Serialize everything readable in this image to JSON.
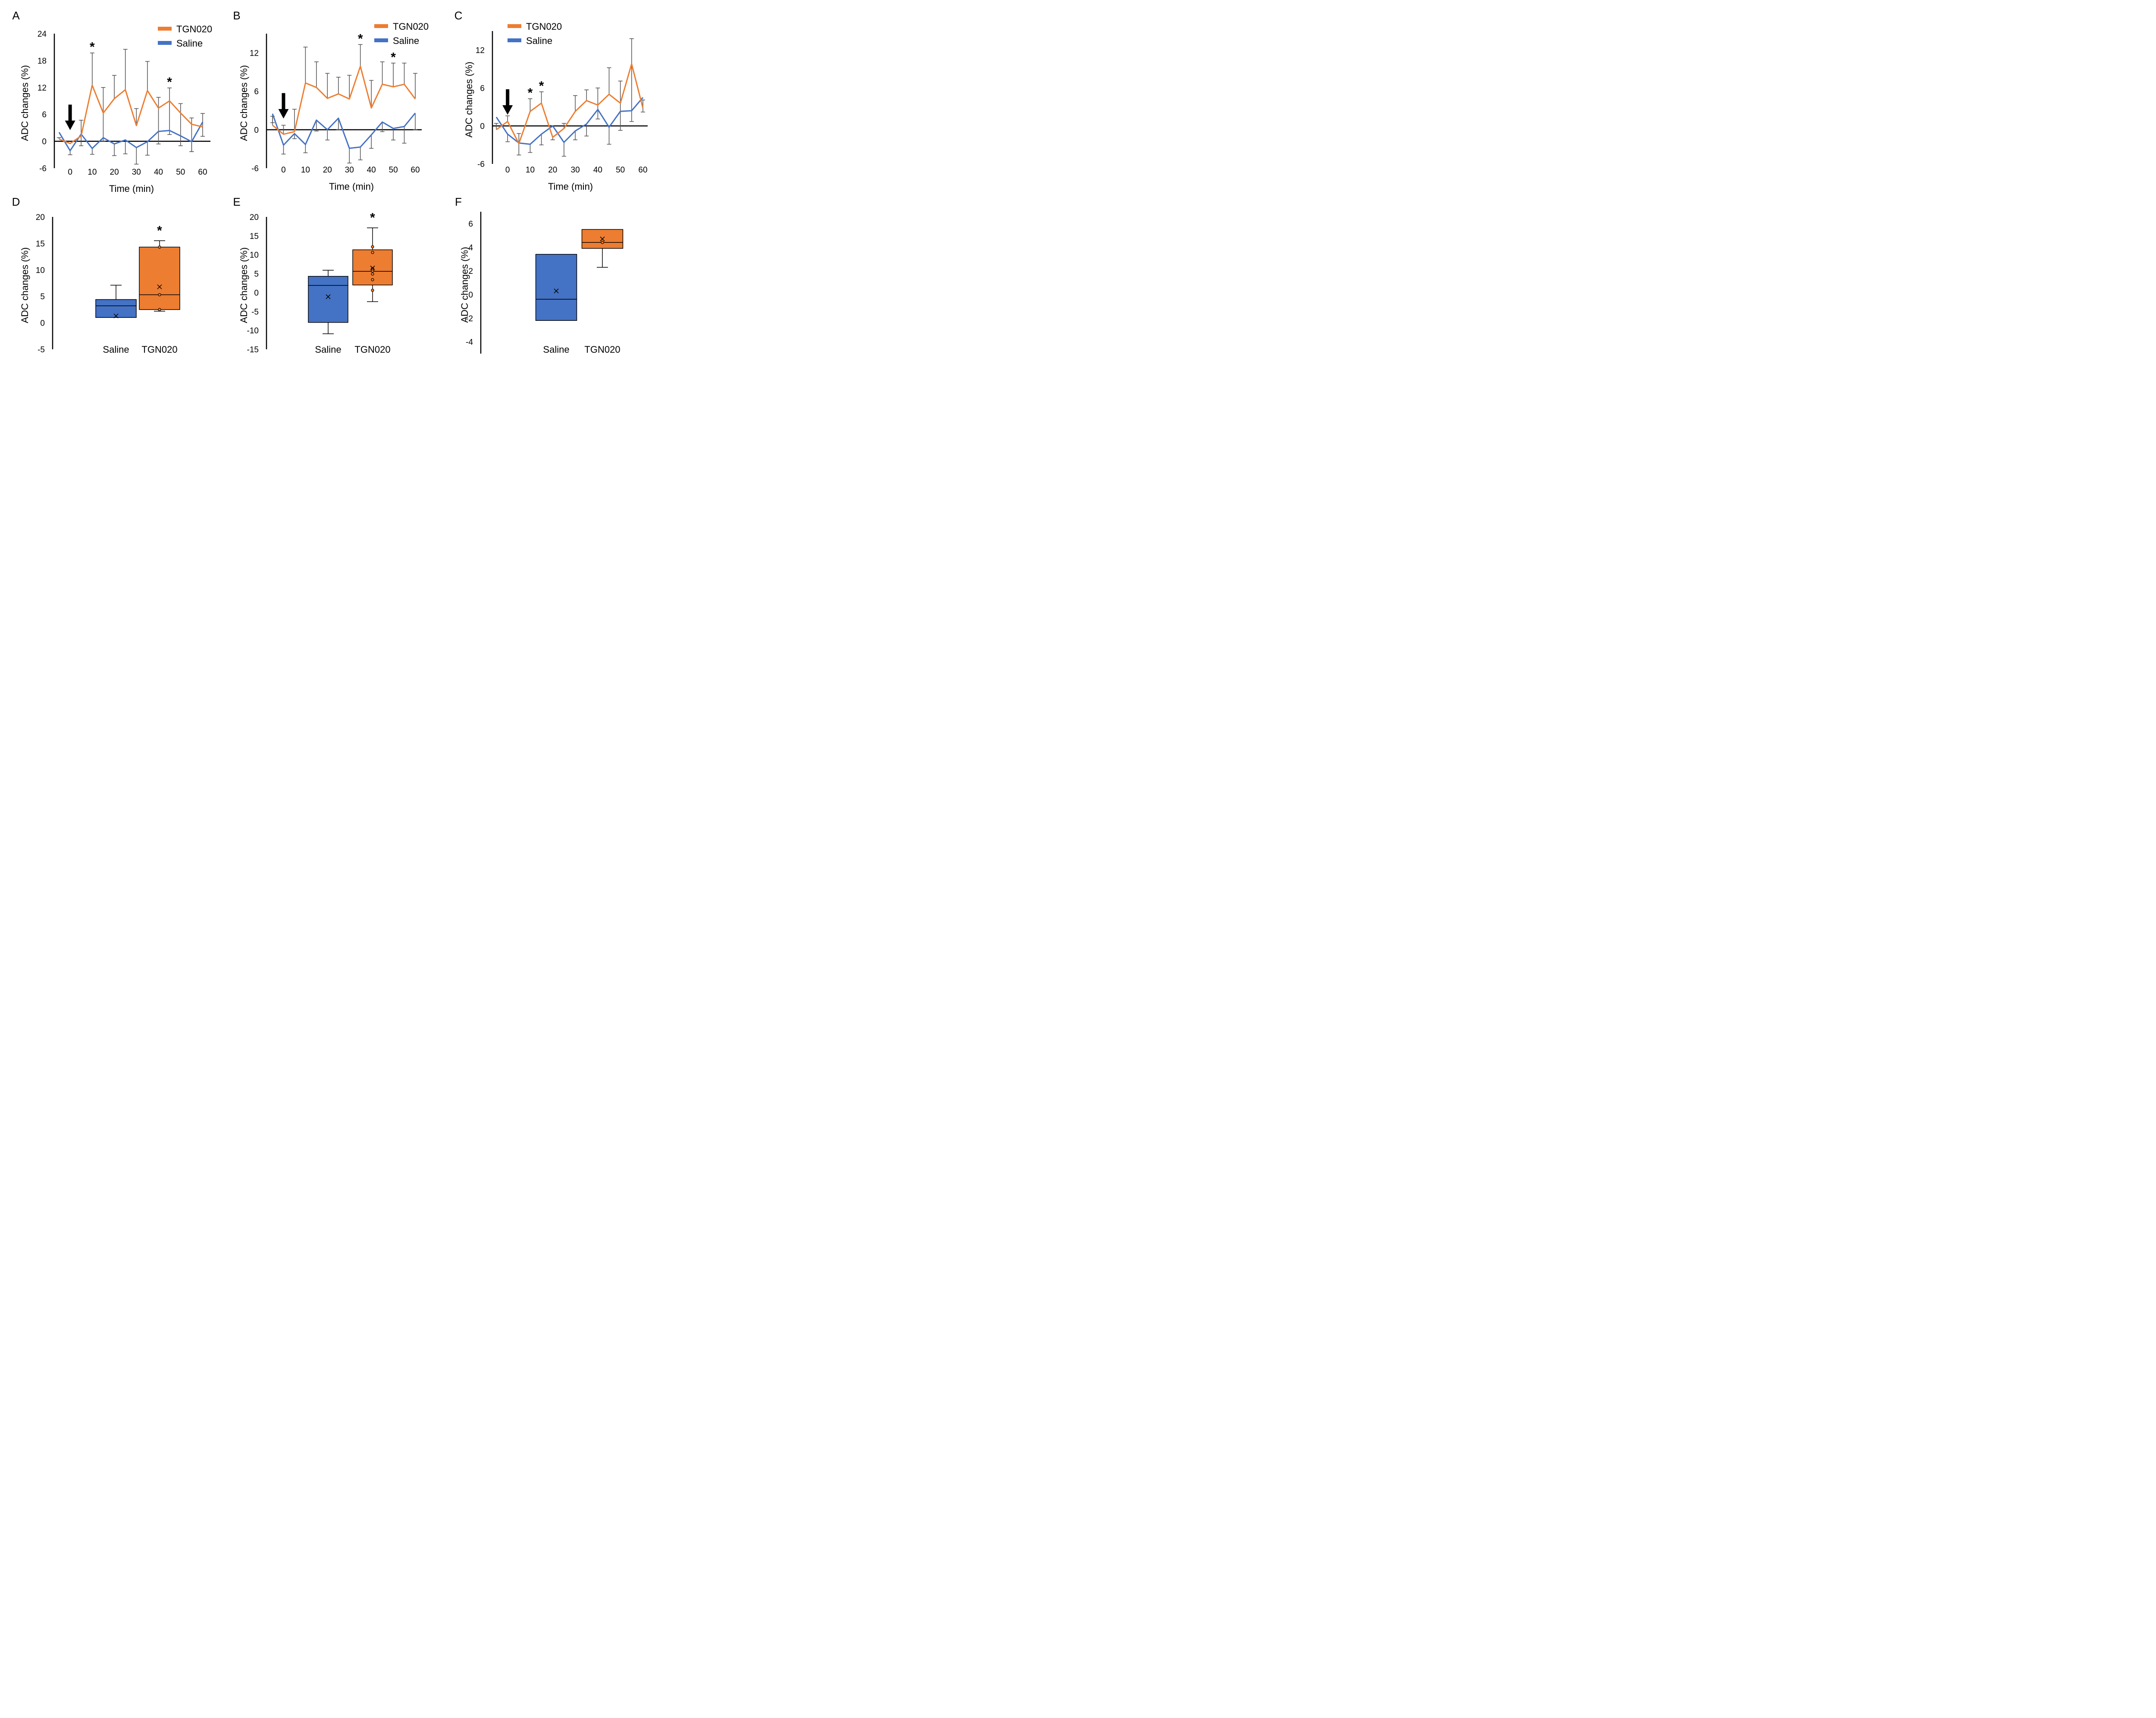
{
  "colors": {
    "tgn020": "#ED7D31",
    "saline": "#4472C4",
    "error_bar": "#595959",
    "axis": "#000000"
  },
  "chart_data": [
    {
      "panel": "A",
      "type": "line",
      "xlabel": "Time (min)",
      "ylabel": "ADC changes (%)",
      "ylim": [
        -6,
        24
      ],
      "yticks": [
        "-6",
        "0",
        "6",
        "12",
        "18",
        "24"
      ],
      "ytick_values": [
        -6,
        0,
        6,
        12,
        18,
        24
      ],
      "xticks": [
        "0",
        "10",
        "20",
        "30",
        "40",
        "50",
        "60"
      ],
      "xtick_values": [
        0,
        10,
        20,
        30,
        40,
        50,
        60
      ],
      "x": [
        -5,
        0,
        5,
        10,
        15,
        20,
        25,
        30,
        35,
        40,
        45,
        50,
        55,
        60
      ],
      "legend": "top-right",
      "arrow_at": 0,
      "series": [
        {
          "name": "TGN020",
          "color_key": "tgn020",
          "values": [
            0.5,
            -0.5,
            1.2,
            12.5,
            6.3,
            9.5,
            11.5,
            3.5,
            11.3,
            7.4,
            9.0,
            6.3,
            3.8,
            3.2
          ],
          "error_upper": [
            0.8,
            null,
            4.7,
            19.7,
            12.0,
            14.7,
            20.5,
            7.3,
            17.8,
            9.8,
            11.9,
            8.4,
            5.2,
            6.2
          ],
          "error_lower": [
            null,
            null,
            -1.0,
            null,
            0.0,
            null,
            null,
            null,
            null,
            -0.6,
            1.5,
            -1.0,
            -2.3,
            1.1
          ]
        },
        {
          "name": "Saline",
          "color_key": "saline",
          "values": [
            2.0,
            -2.1,
            1.6,
            -1.6,
            0.8,
            -0.6,
            0.3,
            -1.4,
            -0.1,
            2.2,
            2.4,
            1.2,
            -0.1,
            4.3
          ],
          "error_upper": [
            null,
            null,
            null,
            null,
            null,
            null,
            null,
            null,
            null,
            null,
            null,
            null,
            null,
            null
          ],
          "error_lower": [
            null,
            -3.0,
            null,
            -2.9,
            null,
            -3.2,
            -2.8,
            -5.1,
            -3.1,
            null,
            null,
            null,
            -2.3,
            null
          ]
        }
      ],
      "significance": [
        10,
        45
      ]
    },
    {
      "panel": "B",
      "type": "line",
      "xlabel": "Time (min)",
      "ylabel": "ADC changes (%)",
      "ylim": [
        -6,
        15
      ],
      "yticks": [
        "-6",
        "0",
        "6",
        "12"
      ],
      "ytick_values": [
        -6,
        0,
        6,
        12
      ],
      "xticks": [
        "0",
        "10",
        "20",
        "30",
        "40",
        "50",
        "60"
      ],
      "xtick_values": [
        0,
        10,
        20,
        30,
        40,
        50,
        60
      ],
      "x": [
        -5,
        0,
        5,
        10,
        15,
        20,
        25,
        30,
        35,
        40,
        45,
        50,
        55,
        60
      ],
      "legend": "top-right",
      "arrow_at": 0,
      "series": [
        {
          "name": "TGN020",
          "color_key": "tgn020",
          "values": [
            0.7,
            -0.7,
            -0.3,
            7.3,
            6.6,
            4.9,
            5.6,
            4.8,
            9.9,
            3.4,
            7.1,
            6.7,
            7.1,
            4.8
          ],
          "error_upper": [
            2.1,
            0.7,
            3.2,
            12.9,
            10.6,
            8.8,
            8.2,
            8.5,
            13.3,
            7.7,
            10.6,
            10.4,
            10.4,
            8.8
          ],
          "error_lower": [
            null,
            null,
            null,
            null,
            null,
            null,
            null,
            null,
            null,
            null,
            null,
            null,
            null,
            null
          ]
        },
        {
          "name": "Saline",
          "color_key": "saline",
          "values": [
            2.5,
            -2.4,
            -0.6,
            -2.3,
            1.5,
            0.0,
            1.8,
            -2.9,
            -2.7,
            -0.8,
            1.2,
            0.2,
            0.5,
            2.6
          ],
          "error_upper": [
            null,
            null,
            null,
            null,
            null,
            null,
            null,
            null,
            null,
            null,
            null,
            null,
            null,
            null
          ],
          "error_lower": [
            1.1,
            -3.8,
            -1.4,
            -3.6,
            -0.2,
            -1.6,
            0.0,
            -5.2,
            -4.7,
            -2.9,
            -0.3,
            -1.6,
            -2.1,
            0.0
          ]
        }
      ],
      "significance": [
        35,
        50
      ]
    },
    {
      "panel": "C",
      "type": "line",
      "xlabel": "Time (min)",
      "ylabel": "ADC changes (%)",
      "ylim": [
        -6,
        15
      ],
      "yticks": [
        "-6",
        "0",
        "6",
        "12"
      ],
      "ytick_values": [
        -6,
        0,
        6,
        12
      ],
      "xticks": [
        "0",
        "10",
        "20",
        "30",
        "40",
        "50",
        "60"
      ],
      "xtick_values": [
        0,
        10,
        20,
        30,
        40,
        50,
        60
      ],
      "x": [
        -5,
        0,
        5,
        10,
        15,
        20,
        25,
        30,
        35,
        40,
        45,
        50,
        55,
        60
      ],
      "legend": "top-left",
      "arrow_at": 0,
      "series": [
        {
          "name": "TGN020",
          "color_key": "tgn020",
          "values": [
            -0.6,
            0.7,
            -2.8,
            2.3,
            3.6,
            -1.8,
            -0.4,
            2.3,
            4.0,
            3.3,
            5.0,
            3.6,
            9.8,
            2.8
          ],
          "error_upper": [
            0.4,
            1.6,
            null,
            4.3,
            5.4,
            null,
            0.4,
            4.8,
            5.7,
            6.0,
            9.2,
            7.1,
            13.8,
            4.1
          ],
          "error_lower": [
            null,
            null,
            -4.6,
            null,
            null,
            -2.2,
            null,
            null,
            null,
            1.1,
            null,
            -0.7,
            0.7,
            2.2
          ]
        },
        {
          "name": "Saline",
          "color_key": "saline",
          "values": [
            1.4,
            -1.3,
            -2.7,
            -2.9,
            -1.3,
            0.0,
            -2.6,
            -0.8,
            0.3,
            2.6,
            -0.2,
            2.3,
            2.4,
            4.5
          ],
          "error_upper": [
            null,
            null,
            -1.2,
            null,
            null,
            null,
            null,
            null,
            null,
            null,
            null,
            null,
            null,
            null
          ],
          "error_lower": [
            null,
            -2.5,
            null,
            -4.2,
            -3.0,
            null,
            -4.8,
            -2.2,
            -1.6,
            null,
            -2.9,
            null,
            null,
            null
          ]
        }
      ],
      "significance": [
        10,
        15
      ]
    },
    {
      "panel": "D",
      "type": "box",
      "ylabel": "ADC changes (%)",
      "ylim": [
        -5,
        20
      ],
      "yticks": [
        "-5",
        "0",
        "5",
        "10",
        "15",
        "20"
      ],
      "ytick_values": [
        -5,
        0,
        5,
        10,
        15,
        20
      ],
      "categories": [
        "Saline",
        "TGN020"
      ],
      "boxes": [
        {
          "name": "Saline",
          "color_key": "saline",
          "min": 1.0,
          "q1": 1.0,
          "median": 3.2,
          "q3": 4.4,
          "max": 7.1,
          "mean": 1.3,
          "points": []
        },
        {
          "name": "TGN020",
          "color_key": "tgn020",
          "min": 2.2,
          "q1": 2.5,
          "median": 5.3,
          "q3": 14.3,
          "max": 15.5,
          "mean": 6.8,
          "points": [
            2.5,
            5.3,
            14.3
          ]
        }
      ],
      "significance": [
        "TGN020"
      ]
    },
    {
      "panel": "E",
      "type": "box",
      "ylabel": "ADC changes (%)",
      "ylim": [
        -15,
        20
      ],
      "yticks": [
        "-15",
        "-10",
        "-5",
        "0",
        "5",
        "10",
        "15",
        "20"
      ],
      "ytick_values": [
        -15,
        -10,
        -5,
        0,
        5,
        10,
        15,
        20
      ],
      "categories": [
        "Saline",
        "TGN020"
      ],
      "boxes": [
        {
          "name": "Saline",
          "color_key": "saline",
          "min": -10.9,
          "q1": -7.9,
          "median": 1.9,
          "q3": 4.3,
          "max": 5.9,
          "mean": -1.1,
          "points": []
        },
        {
          "name": "TGN020",
          "color_key": "tgn020",
          "min": -2.4,
          "q1": 2.0,
          "median": 5.6,
          "q3": 11.3,
          "max": 17.1,
          "mean": 6.5,
          "points": [
            0.6,
            3.4,
            4.9,
            5.7,
            6.3,
            10.6,
            12.1
          ]
        }
      ],
      "significance": [
        "TGN020"
      ]
    },
    {
      "panel": "F",
      "type": "box",
      "ylabel": "ADC changes (%)",
      "ylim": [
        -5,
        7
      ],
      "yticks": [
        "-4",
        "-2",
        "0",
        "2",
        "4",
        "6"
      ],
      "ytick_values": [
        -4,
        -2,
        0,
        2,
        4,
        6
      ],
      "categories": [
        "Saline",
        "TGN020"
      ],
      "boxes": [
        {
          "name": "Saline",
          "color_key": "saline",
          "min": -2.2,
          "q1": -2.2,
          "median": -0.4,
          "q3": 3.4,
          "max": 3.4,
          "mean": 0.3,
          "points": []
        },
        {
          "name": "TGN020",
          "color_key": "tgn020",
          "min": 2.3,
          "q1": 3.9,
          "median": 4.4,
          "q3": 5.5,
          "max": 5.5,
          "mean": 4.7,
          "points": [
            4.4
          ]
        }
      ],
      "significance": []
    }
  ],
  "labels": {
    "A": "A",
    "B": "B",
    "C": "C",
    "D": "D",
    "E": "E",
    "F": "F",
    "star": "*"
  }
}
